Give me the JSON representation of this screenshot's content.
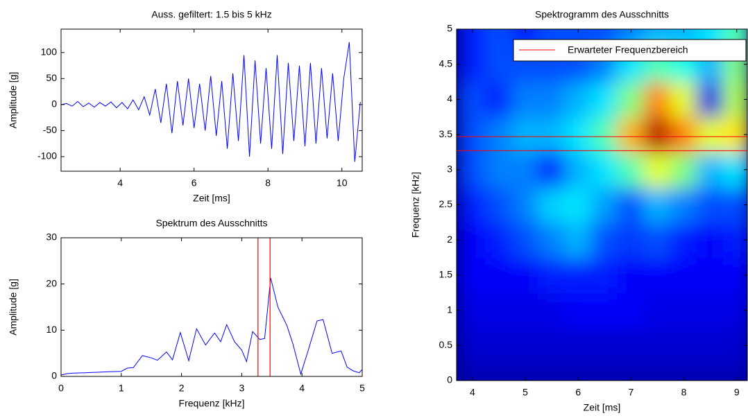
{
  "chart_data": [
    {
      "type": "line",
      "title": "Auss. gefiltert: 1.5 bis 5 kHz",
      "xlabel": "Zeit [ms]",
      "ylabel": "Amplitude [g]",
      "x": [
        2.4,
        2.55,
        2.7,
        2.85,
        3.0,
        3.15,
        3.3,
        3.45,
        3.6,
        3.75,
        3.9,
        4.05,
        4.2,
        4.35,
        4.5,
        4.65,
        4.8,
        4.95,
        5.1,
        5.25,
        5.4,
        5.55,
        5.7,
        5.85,
        6.0,
        6.15,
        6.3,
        6.45,
        6.6,
        6.75,
        6.9,
        7.05,
        7.2,
        7.35,
        7.5,
        7.65,
        7.8,
        7.95,
        8.1,
        8.25,
        8.4,
        8.55,
        8.7,
        8.85,
        9.0,
        9.15,
        9.3,
        9.45,
        9.6,
        9.75,
        9.9,
        10.05,
        10.2,
        10.35,
        10.5
      ],
      "values": [
        0,
        2,
        -3,
        6,
        -4,
        3,
        -5,
        4,
        -3,
        5,
        -6,
        4,
        -8,
        9,
        -10,
        15,
        -20,
        30,
        -35,
        40,
        -55,
        45,
        -40,
        50,
        -45,
        40,
        -50,
        55,
        -60,
        45,
        -85,
        60,
        -70,
        95,
        -100,
        85,
        -75,
        70,
        -85,
        95,
        -95,
        80,
        -70,
        75,
        -80,
        80,
        -75,
        70,
        -65,
        60,
        -70,
        50,
        120,
        -110,
        5
      ],
      "color": "#0000ff",
      "xlim": [
        2.4,
        10.55
      ],
      "ylim": [
        -128,
        145
      ],
      "xticks": [
        4,
        6,
        8,
        10
      ],
      "yticks": [
        -100,
        -50,
        0,
        50,
        100
      ]
    },
    {
      "type": "line",
      "title": "Spektrum des Ausschnitts",
      "xlabel": "Frequenz [kHz]",
      "ylabel": "Amplitude [g]",
      "x": [
        0,
        0.1,
        0.2,
        0.4,
        0.6,
        0.8,
        1.0,
        1.1,
        1.2,
        1.35,
        1.5,
        1.6,
        1.75,
        1.85,
        1.98,
        2.12,
        2.25,
        2.4,
        2.55,
        2.65,
        2.75,
        2.88,
        3.0,
        3.08,
        3.18,
        3.3,
        3.38,
        3.48,
        3.6,
        3.75,
        3.85,
        3.98,
        4.1,
        4.25,
        4.35,
        4.5,
        4.65,
        4.75,
        4.85,
        4.95,
        5.0
      ],
      "values": [
        0.3,
        0.6,
        0.7,
        0.8,
        0.9,
        1.0,
        1.1,
        1.8,
        1.9,
        4.5,
        4.0,
        3.5,
        5.3,
        3.6,
        9.5,
        3.4,
        10.3,
        6.8,
        9.4,
        7.5,
        11.2,
        7.5,
        5.7,
        3.2,
        9.7,
        8.0,
        8.2,
        21.3,
        15,
        11,
        7,
        0.5,
        5.5,
        12,
        12.3,
        5,
        5.5,
        2,
        1.2,
        0.8,
        1.5
      ],
      "color": "#0000ff",
      "xlim": [
        0,
        5
      ],
      "ylim": [
        0,
        30
      ],
      "xticks": [
        0,
        1,
        2,
        3,
        4,
        5
      ],
      "yticks": [
        0,
        10,
        20,
        30
      ],
      "vlines": {
        "values": [
          3.27,
          3.47
        ],
        "color": "#ff0000"
      }
    },
    {
      "type": "heatmap",
      "title": "Spektrogramm des Ausschnitts",
      "xlabel": "Zeit [ms]",
      "ylabel": "Frequenz [kHz]",
      "colormap": "jet",
      "x": [
        4,
        4.5,
        5,
        5.5,
        6,
        6.5,
        7,
        7.5,
        8,
        8.5,
        9
      ],
      "y": [
        0,
        0.5,
        1,
        1.5,
        2,
        2.5,
        3,
        3.5,
        4,
        4.5,
        5
      ],
      "z": [
        [
          0.05,
          0.05,
          0.05,
          0.05,
          0.05,
          0.05,
          0.05,
          0.05,
          0.05,
          0.05,
          0.05
        ],
        [
          0.08,
          0.08,
          0.08,
          0.08,
          0.08,
          0.08,
          0.08,
          0.08,
          0.08,
          0.08,
          0.08
        ],
        [
          0.1,
          0.1,
          0.1,
          0.1,
          0.12,
          0.12,
          0.12,
          0.1,
          0.1,
          0.1,
          0.1
        ],
        [
          0.12,
          0.12,
          0.12,
          0.15,
          0.15,
          0.15,
          0.12,
          0.12,
          0.12,
          0.12,
          0.12
        ],
        [
          0.12,
          0.15,
          0.2,
          0.25,
          0.3,
          0.2,
          0.18,
          0.2,
          0.15,
          0.12,
          0.15
        ],
        [
          0.15,
          0.2,
          0.25,
          0.33,
          0.35,
          0.28,
          0.2,
          0.3,
          0.25,
          0.2,
          0.2
        ],
        [
          0.2,
          0.25,
          0.25,
          0.15,
          0.3,
          0.35,
          0.45,
          0.6,
          0.5,
          0.3,
          0.35
        ],
        [
          0.2,
          0.25,
          0.3,
          0.3,
          0.35,
          0.45,
          0.7,
          0.95,
          0.75,
          0.6,
          0.65
        ],
        [
          0.2,
          0.15,
          0.25,
          0.25,
          0.3,
          0.35,
          0.5,
          0.75,
          0.6,
          0.1,
          0.55
        ],
        [
          0.15,
          0.2,
          0.2,
          0.2,
          0.2,
          0.25,
          0.35,
          0.45,
          0.4,
          0.3,
          0.5
        ],
        [
          0.15,
          0.2,
          0.15,
          0.2,
          0.2,
          0.2,
          0.25,
          0.3,
          0.3,
          0.35,
          0.45
        ]
      ],
      "xlim": [
        3.7,
        9.2
      ],
      "ylim": [
        0,
        5
      ],
      "xticks": [
        4,
        5,
        6,
        7,
        8,
        9
      ],
      "yticks": [
        0,
        0.5,
        1,
        1.5,
        2,
        2.5,
        3,
        3.5,
        4,
        4.5,
        5
      ],
      "hlines": {
        "name": "Erwarteter Frequenzbereich",
        "values": [
          3.27,
          3.47
        ],
        "color": "#ff0000"
      },
      "legend": "upper right"
    }
  ]
}
